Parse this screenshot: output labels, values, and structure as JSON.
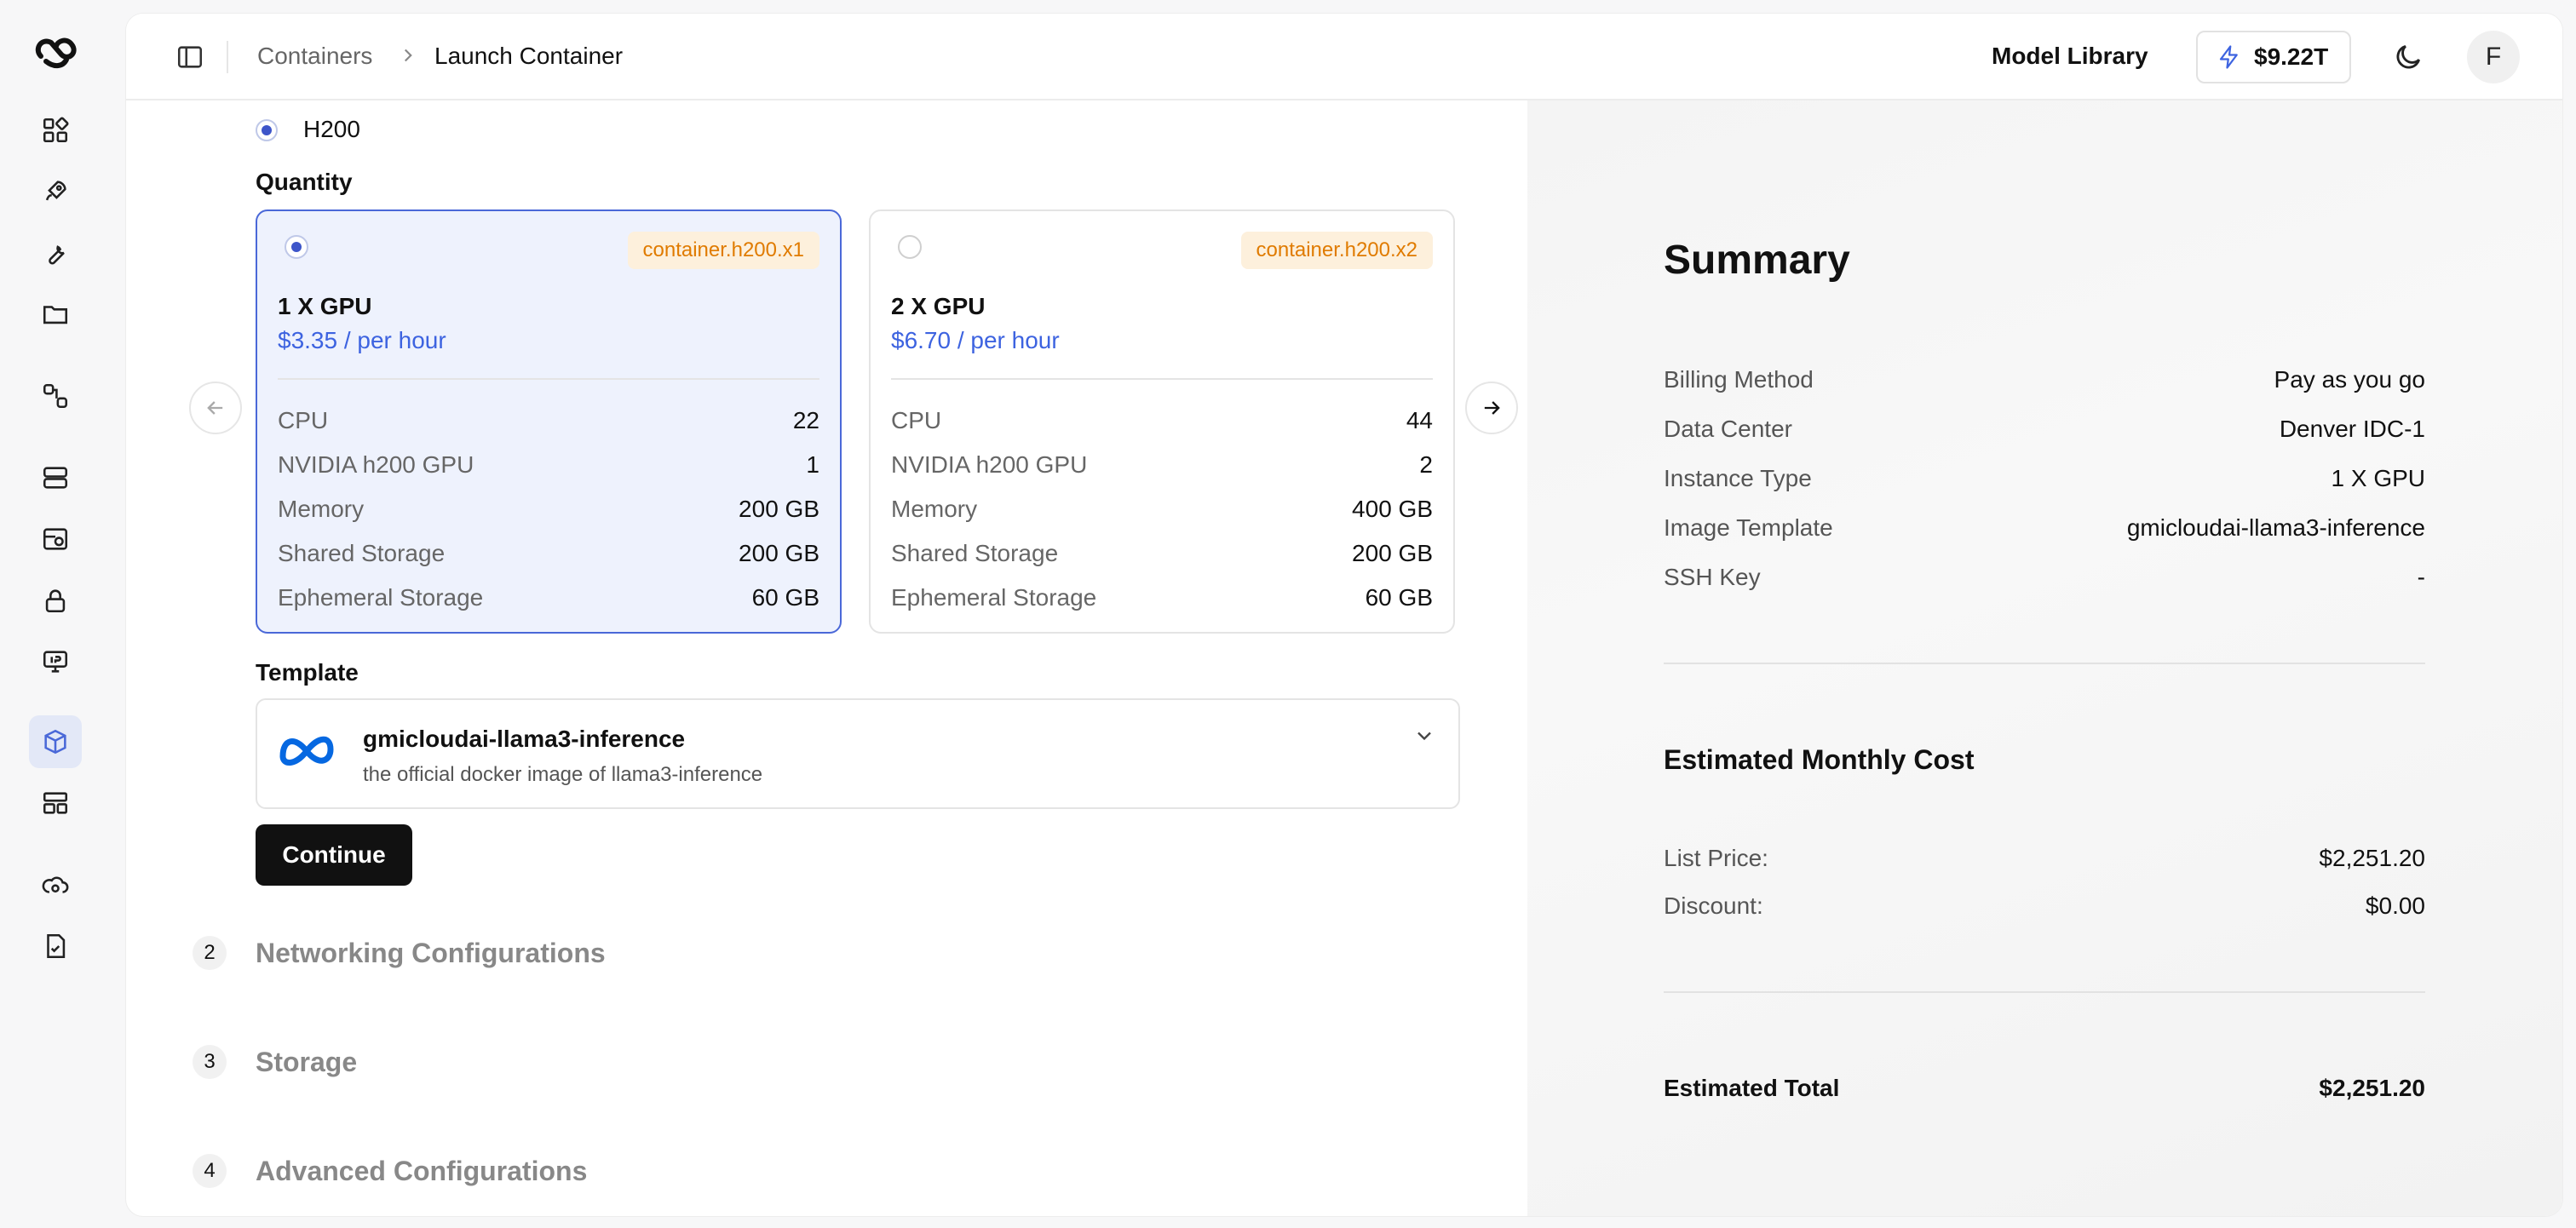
{
  "breadcrumb": {
    "root": "Containers",
    "current": "Launch Container"
  },
  "header": {
    "model_library": "Model Library",
    "credits": "$9.22T",
    "avatar_initial": "F"
  },
  "gpu_type": {
    "label": "H200"
  },
  "quantity": {
    "label": "Quantity",
    "options": [
      {
        "sku": "container.h200.x1",
        "name": "1 X GPU",
        "price": "$3.35 / per hour",
        "selected": true,
        "specs": [
          {
            "k": "CPU",
            "v": "22"
          },
          {
            "k": "NVIDIA h200 GPU",
            "v": "1"
          },
          {
            "k": "Memory",
            "v": "200 GB"
          },
          {
            "k": "Shared Storage",
            "v": "200 GB"
          },
          {
            "k": "Ephemeral Storage",
            "v": "60 GB"
          }
        ]
      },
      {
        "sku": "container.h200.x2",
        "name": "2 X GPU",
        "price": "$6.70 / per hour",
        "selected": false,
        "specs": [
          {
            "k": "CPU",
            "v": "44"
          },
          {
            "k": "NVIDIA h200 GPU",
            "v": "2"
          },
          {
            "k": "Memory",
            "v": "400 GB"
          },
          {
            "k": "Shared Storage",
            "v": "200 GB"
          },
          {
            "k": "Ephemeral Storage",
            "v": "60 GB"
          }
        ]
      }
    ]
  },
  "template": {
    "label": "Template",
    "name": "gmicloudai-llama3-inference",
    "description": "the official docker image of llama3-inference"
  },
  "continue_label": "Continue",
  "steps": [
    {
      "num": "2",
      "label": "Networking Configurations"
    },
    {
      "num": "3",
      "label": "Storage"
    },
    {
      "num": "4",
      "label": "Advanced Configurations"
    }
  ],
  "summary": {
    "title": "Summary",
    "rows": [
      {
        "k": "Billing Method",
        "v": "Pay as you go"
      },
      {
        "k": "Data Center",
        "v": "Denver IDC-1"
      },
      {
        "k": "Instance Type",
        "v": "1 X GPU"
      },
      {
        "k": "Image Template",
        "v": "gmicloudai-llama3-inference"
      },
      {
        "k": "SSH Key",
        "v": "-"
      }
    ],
    "cost_title": "Estimated Monthly Cost",
    "cost_rows": [
      {
        "k": "List Price:",
        "v": "$2,251.20"
      },
      {
        "k": "Discount:",
        "v": "$0.00"
      }
    ],
    "total_label": "Estimated Total",
    "total_value": "$2,251.20"
  },
  "colors": {
    "accent": "#3d55c9",
    "price_blue": "#3d63e0",
    "sku_bg": "#fdf0dc",
    "sku_text": "#e07b00",
    "selected_bg": "#eef2fd"
  }
}
